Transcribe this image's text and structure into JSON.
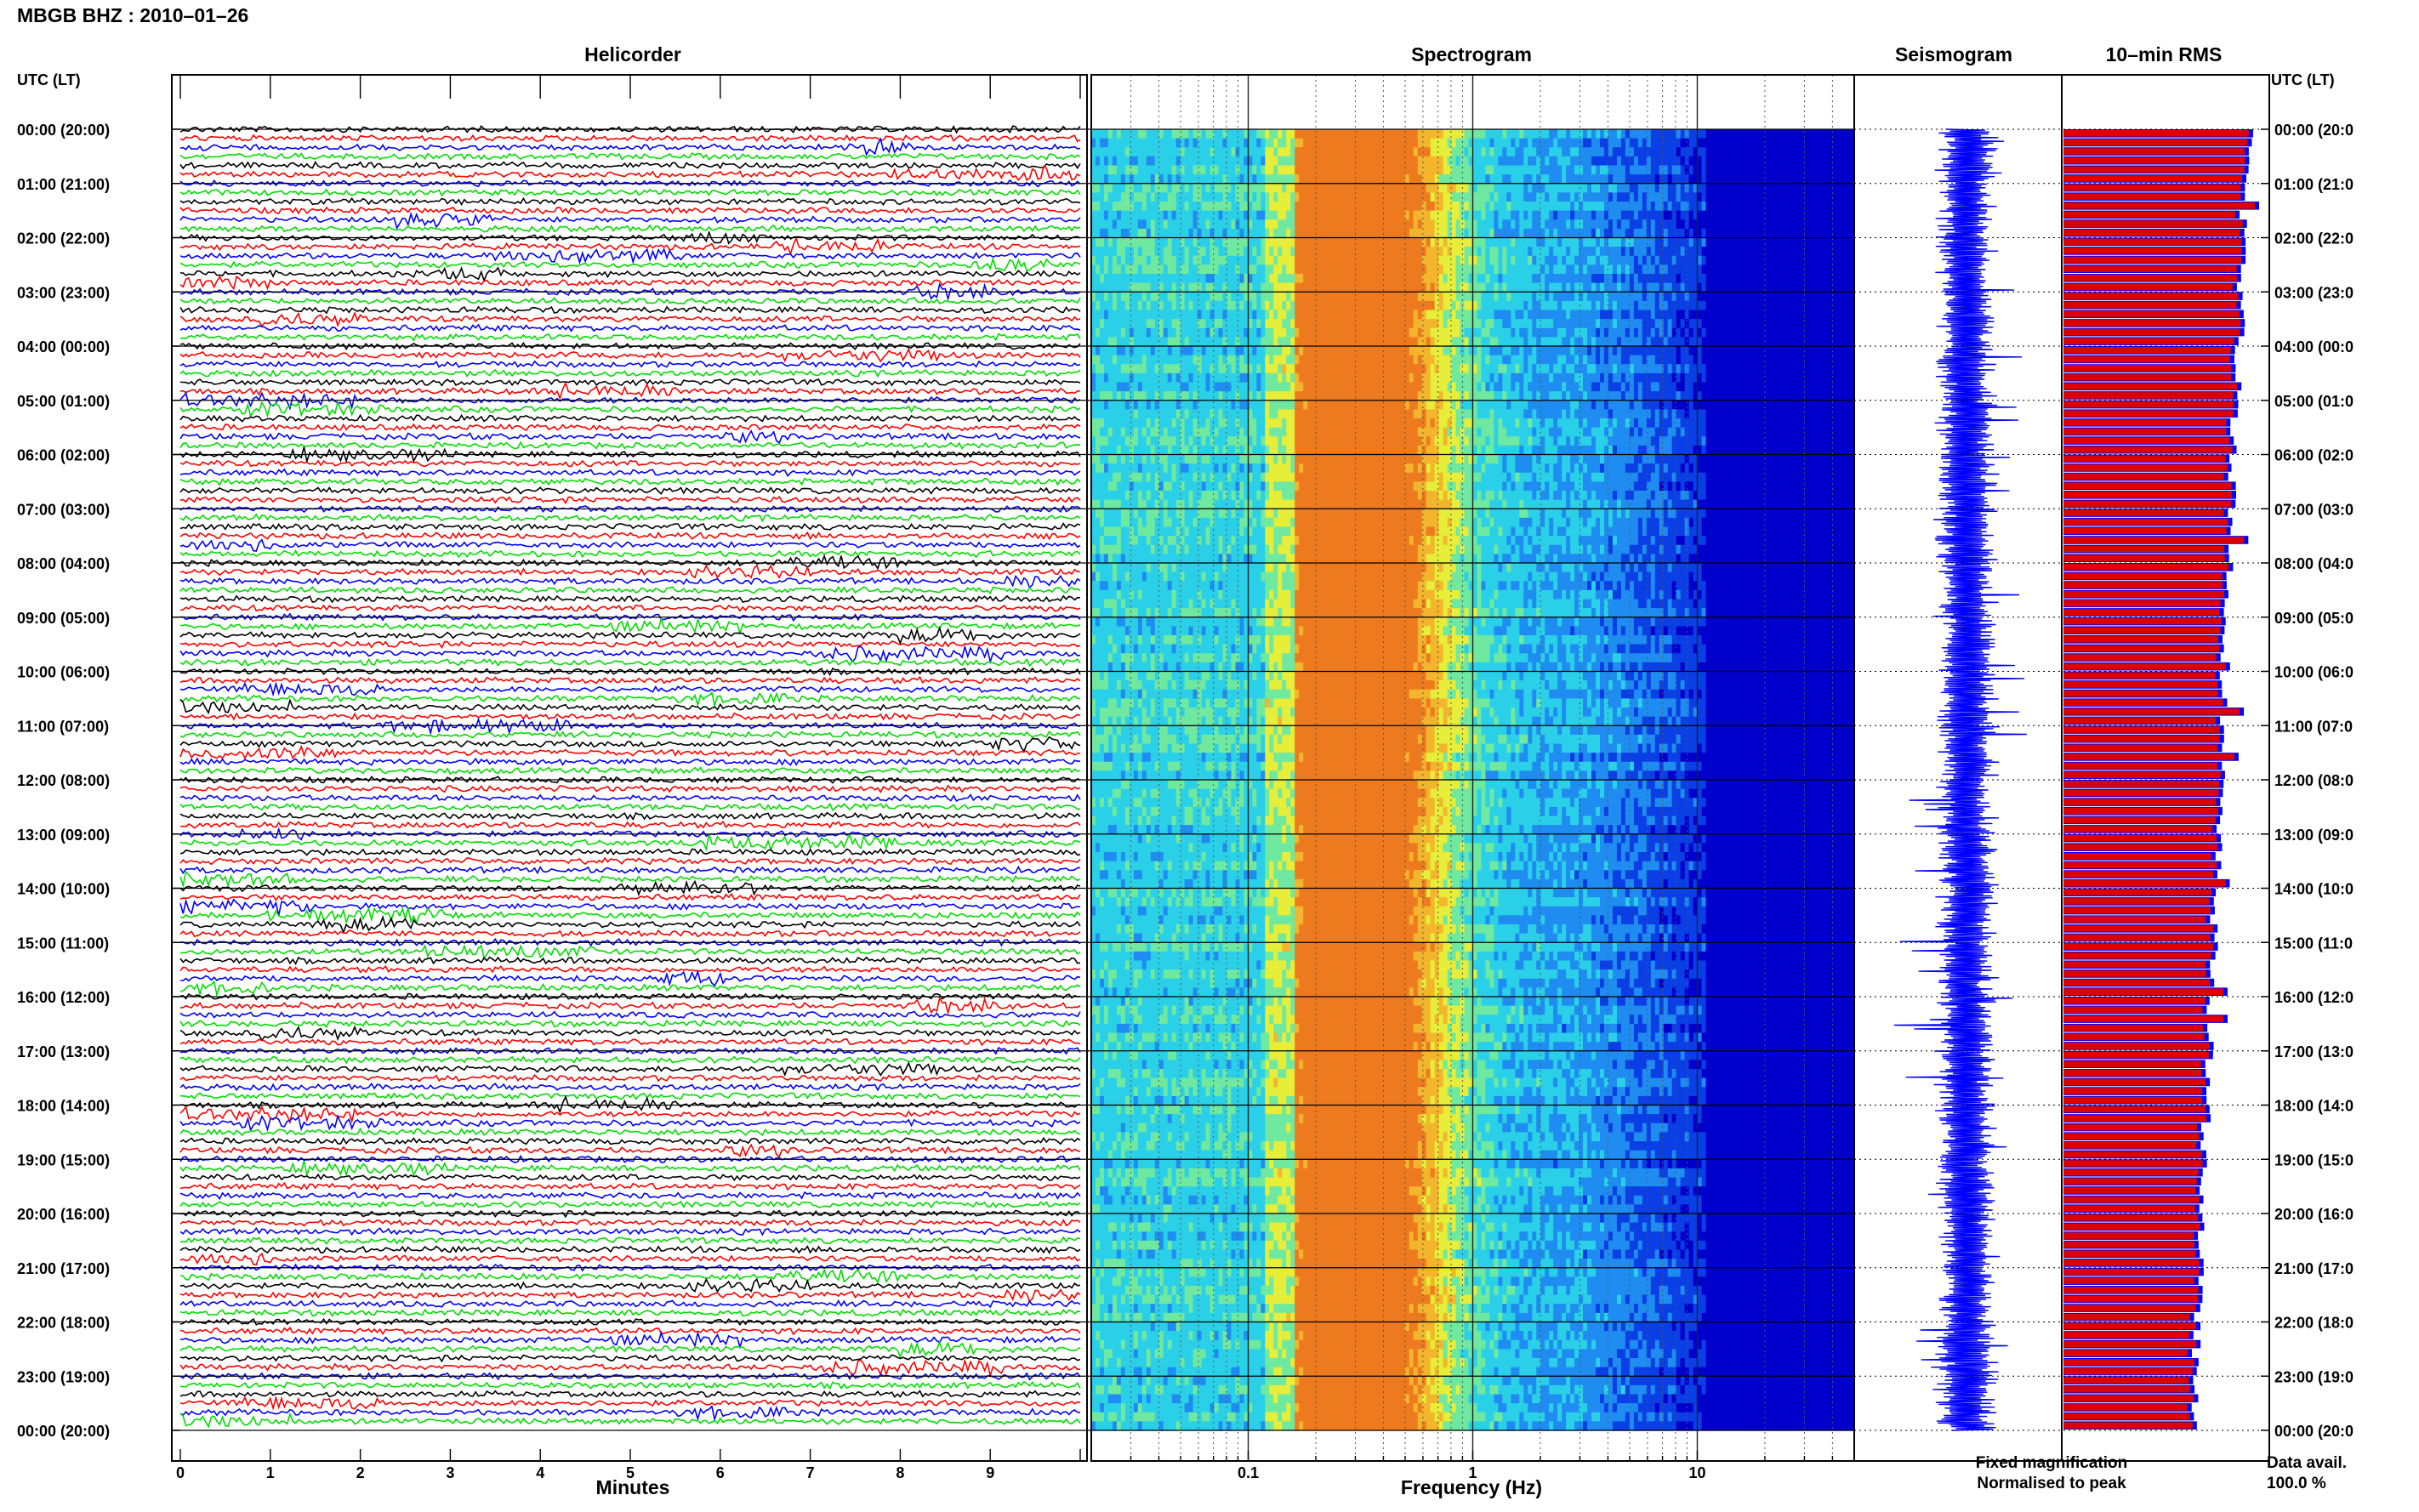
{
  "header": {
    "station_title": "MBGB BHZ : 2010–01–26"
  },
  "panels": {
    "helicorder": "Helicorder",
    "spectrogram": "Spectrogram",
    "seismogram": "Seismogram",
    "rms": "10–min RMS"
  },
  "time_axis_label": "UTC (LT)",
  "chart_data": [
    {
      "type": "line",
      "name": "helicorder",
      "title": "Helicorder",
      "xlabel": "Minutes",
      "x_ticks": [
        "0",
        "1",
        "2",
        "3",
        "4",
        "5",
        "6",
        "7",
        "8",
        "9"
      ],
      "xlim": [
        0,
        10
      ],
      "rows_per_hour": 6,
      "row_minutes": 10,
      "trace_colors": [
        "#000000",
        "#ff0000",
        "#0000ff",
        "#00dd00"
      ],
      "y_tick_labels": [
        "00:00 (20:00)",
        "01:00 (21:00)",
        "02:00 (22:00)",
        "03:00 (23:00)",
        "04:00 (00:00)",
        "05:00 (01:00)",
        "06:00 (02:00)",
        "07:00 (03:00)",
        "08:00 (04:00)",
        "09:00 (05:00)",
        "10:00 (06:00)",
        "11:00 (07:00)",
        "12:00 (08:00)",
        "13:00 (09:00)",
        "14:00 (10:00)",
        "15:00 (11:00)",
        "16:00 (12:00)",
        "17:00 (13:00)",
        "18:00 (14:00)",
        "19:00 (15:00)",
        "20:00 (16:00)",
        "21:00 (17:00)",
        "22:00 (18:00)",
        "23:00 (19:00)",
        "00:00 (20:00)"
      ],
      "right_tick_labels": [
        "00:00 (20:0",
        "01:00 (21:0",
        "02:00 (22:0",
        "03:00 (23:0",
        "04:00 (00:0",
        "05:00 (01:0",
        "06:00 (02:0",
        "07:00 (03:0",
        "08:00 (04:0",
        "09:00 (05:0",
        "10:00 (06:0",
        "11:00 (07:0",
        "12:00 (08:0",
        "13:00 (09:0",
        "14:00 (10:0",
        "15:00 (11:0",
        "16:00 (12:0",
        "17:00 (13:0",
        "18:00 (14:0",
        "19:00 (15:0",
        "20:00 (16:0",
        "21:00 (17:0",
        "22:00 (18:0",
        "23:00 (19:0",
        "00:00 (20:0"
      ]
    },
    {
      "type": "heatmap",
      "name": "spectrogram",
      "title": "Spectrogram",
      "xlabel": "Frequency (Hz)",
      "x_scale": "log",
      "xlim": [
        0.02,
        50
      ],
      "x_tick_labels": [
        "0.1",
        "1",
        "10"
      ],
      "x_tick_values": [
        0.1,
        1,
        10
      ],
      "colormap": [
        "#0000cc",
        "#0a3fe6",
        "#1e8cf0",
        "#2ad0e8",
        "#6fe8a0",
        "#e6ee3a",
        "#f3b52c",
        "#ee7a1f"
      ]
    },
    {
      "type": "line",
      "name": "seismogram",
      "title": "Seismogram",
      "color": "#0000ff"
    },
    {
      "type": "bar",
      "name": "rms",
      "title": "10–min RMS",
      "orientation": "horizontal",
      "series": [
        {
          "name": "Fixed magnification",
          "color": "#0000ff"
        },
        {
          "name": "Normalised to peak",
          "color": "#dd0000"
        }
      ]
    }
  ],
  "legend": {
    "fixed": "Fixed magnification",
    "normalised": "Normalised to peak",
    "fixed_color": "#0000ff",
    "normalised_color": "#ee0000"
  },
  "availability": {
    "label": "Data avail.",
    "value": "100.0 %"
  }
}
